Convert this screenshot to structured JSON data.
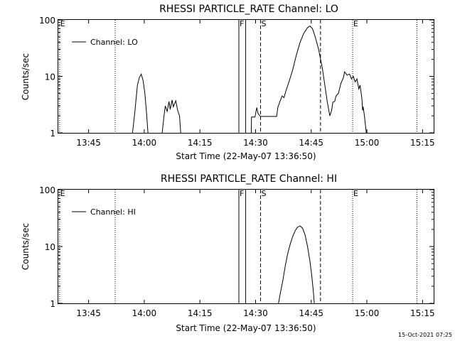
{
  "footer": {
    "timestamp": "15-Oct-2021 07:25"
  },
  "chart_data": [
    {
      "type": "line",
      "title": "RHESSI PARTICLE_RATE Channel: LO",
      "xlabel": "Start Time (22-May-07 13:36:50)",
      "ylabel": "Counts/sec",
      "y_scale": "log",
      "ylim": [
        1,
        100
      ],
      "yticks": [
        {
          "v": 1,
          "label": "1"
        },
        {
          "v": 10,
          "label": "10"
        },
        {
          "v": 100,
          "label": "100"
        }
      ],
      "xlim": [
        "13:36:50",
        "15:18:00"
      ],
      "xticks": [
        {
          "t": "13:45",
          "label": "13:45"
        },
        {
          "t": "14:00",
          "label": "14:00"
        },
        {
          "t": "14:15",
          "label": "14:15"
        },
        {
          "t": "14:30",
          "label": "14:30"
        },
        {
          "t": "14:45",
          "label": "14:45"
        },
        {
          "t": "15:00",
          "label": "15:00"
        },
        {
          "t": "15:15",
          "label": "15:15"
        }
      ],
      "legend": {
        "position": "top-left",
        "entries": [
          "Channel: LO"
        ]
      },
      "series": [
        {
          "name": "Channel: LO",
          "segments": [
            [
              [
                "13:56:50",
                1.0
              ],
              [
                "13:57:30",
                2.5
              ],
              [
                "13:58:10",
                7.0
              ],
              [
                "13:58:40",
                9.5
              ],
              [
                "13:59:10",
                11.0
              ],
              [
                "13:59:40",
                8.5
              ],
              [
                "14:00:10",
                5.0
              ],
              [
                "14:00:40",
                2.0
              ],
              [
                "14:01:00",
                1.0
              ]
            ],
            [
              [
                "14:04:50",
                1.0
              ],
              [
                "14:05:20",
                2.0
              ],
              [
                "14:05:40",
                3.0
              ],
              [
                "14:06:10",
                2.4
              ],
              [
                "14:06:40",
                3.6
              ],
              [
                "14:07:00",
                2.6
              ],
              [
                "14:07:30",
                3.8
              ],
              [
                "14:07:50",
                2.9
              ],
              [
                "14:08:30",
                3.7
              ],
              [
                "14:09:00",
                2.5
              ],
              [
                "14:09:30",
                2.0
              ],
              [
                "14:09:50",
                1.0
              ]
            ],
            [
              [
                "14:28:50",
                1.0
              ],
              [
                "14:28:55",
                1.9
              ],
              [
                "14:29:50",
                1.9
              ],
              [
                "14:30:20",
                2.8
              ],
              [
                "14:30:40",
                2.2
              ],
              [
                "14:31:20",
                1.95
              ],
              [
                "14:35:40",
                1.95
              ],
              [
                "14:36:00",
                2.8
              ],
              [
                "14:36:30",
                3.5
              ],
              [
                "14:37:10",
                4.5
              ],
              [
                "14:37:40",
                4.2
              ],
              [
                "14:38:10",
                5.5
              ],
              [
                "14:39:00",
                8.0
              ],
              [
                "14:40:00",
                13.0
              ],
              [
                "14:41:00",
                24.0
              ],
              [
                "14:42:00",
                40.0
              ],
              [
                "14:43:00",
                58.0
              ],
              [
                "14:44:00",
                73.0
              ],
              [
                "14:44:40",
                78.0
              ],
              [
                "14:45:20",
                70.0
              ],
              [
                "14:46:00",
                52.0
              ],
              [
                "14:47:00",
                30.0
              ],
              [
                "14:48:00",
                14.0
              ],
              [
                "14:48:40",
                7.0
              ],
              [
                "14:49:20",
                3.5
              ],
              [
                "14:50:00",
                2.0
              ],
              [
                "14:50:30",
                2.5
              ],
              [
                "14:50:50",
                3.5
              ],
              [
                "14:51:20",
                3.6
              ],
              [
                "14:51:40",
                4.5
              ],
              [
                "14:52:20",
                5.0
              ],
              [
                "14:53:00",
                7.5
              ],
              [
                "14:53:40",
                9.5
              ],
              [
                "14:54:00",
                12.0
              ],
              [
                "14:54:40",
                10.5
              ],
              [
                "14:55:20",
                11.0
              ],
              [
                "14:55:50",
                9.0
              ],
              [
                "14:56:20",
                10.0
              ],
              [
                "14:56:50",
                8.0
              ],
              [
                "14:57:20",
                9.0
              ],
              [
                "14:57:50",
                6.0
              ],
              [
                "14:58:10",
                7.0
              ],
              [
                "14:58:40",
                4.0
              ],
              [
                "14:58:50",
                2.5
              ],
              [
                "14:59:00",
                2.9
              ],
              [
                "14:59:20",
                2.0
              ],
              [
                "14:59:50",
                1.0
              ]
            ]
          ]
        }
      ],
      "markers": [
        {
          "t": "13:37:10",
          "style": "dotted",
          "label": "E"
        },
        {
          "t": "13:52:10",
          "style": "dotted",
          "label": ""
        },
        {
          "t": "14:25:30",
          "style": "solid",
          "label": "F"
        },
        {
          "t": "14:27:20",
          "style": "solid",
          "label": ""
        },
        {
          "t": "14:31:20",
          "style": "dashed",
          "label": "S"
        },
        {
          "t": "14:47:30",
          "style": "dashed",
          "label": ""
        },
        {
          "t": "14:56:10",
          "style": "dotted",
          "label": "E"
        },
        {
          "t": "15:13:30",
          "style": "dotted",
          "label": ""
        }
      ]
    },
    {
      "type": "line",
      "title": "RHESSI PARTICLE_RATE Channel: HI",
      "xlabel": "Start Time (22-May-07 13:36:50)",
      "ylabel": "Counts/sec",
      "y_scale": "log",
      "ylim": [
        1,
        100
      ],
      "yticks": [
        {
          "v": 1,
          "label": "1"
        },
        {
          "v": 10,
          "label": "10"
        },
        {
          "v": 100,
          "label": "100"
        }
      ],
      "xlim": [
        "13:36:50",
        "15:18:00"
      ],
      "xticks": [
        {
          "t": "13:45",
          "label": "13:45"
        },
        {
          "t": "14:00",
          "label": "14:00"
        },
        {
          "t": "14:15",
          "label": "14:15"
        },
        {
          "t": "14:30",
          "label": "14:30"
        },
        {
          "t": "14:45",
          "label": "14:45"
        },
        {
          "t": "15:00",
          "label": "15:00"
        },
        {
          "t": "15:15",
          "label": "15:15"
        }
      ],
      "legend": {
        "position": "top-left",
        "entries": [
          "Channel: HI"
        ]
      },
      "series": [
        {
          "name": "Channel: HI",
          "segments": [
            [
              [
                "14:36:10",
                1.0
              ],
              [
                "14:36:40",
                1.5
              ],
              [
                "14:37:20",
                2.5
              ],
              [
                "14:38:00",
                4.5
              ],
              [
                "14:38:40",
                7.5
              ],
              [
                "14:39:20",
                11.0
              ],
              [
                "14:40:00",
                15.0
              ],
              [
                "14:40:40",
                19.0
              ],
              [
                "14:41:20",
                22.0
              ],
              [
                "14:42:00",
                23.0
              ],
              [
                "14:42:40",
                21.0
              ],
              [
                "14:43:20",
                16.0
              ],
              [
                "14:44:00",
                10.0
              ],
              [
                "14:44:40",
                5.5
              ],
              [
                "14:45:10",
                3.0
              ],
              [
                "14:45:30",
                1.8
              ],
              [
                "14:45:50",
                1.0
              ]
            ]
          ]
        }
      ],
      "markers": [
        {
          "t": "13:37:10",
          "style": "dotted",
          "label": "E"
        },
        {
          "t": "13:52:10",
          "style": "dotted",
          "label": ""
        },
        {
          "t": "14:25:30",
          "style": "solid",
          "label": "F"
        },
        {
          "t": "14:27:20",
          "style": "solid",
          "label": ""
        },
        {
          "t": "14:31:20",
          "style": "dashed",
          "label": "S"
        },
        {
          "t": "14:47:30",
          "style": "dashed",
          "label": ""
        },
        {
          "t": "14:56:10",
          "style": "dotted",
          "label": "E"
        },
        {
          "t": "15:13:30",
          "style": "dotted",
          "label": ""
        }
      ]
    }
  ]
}
